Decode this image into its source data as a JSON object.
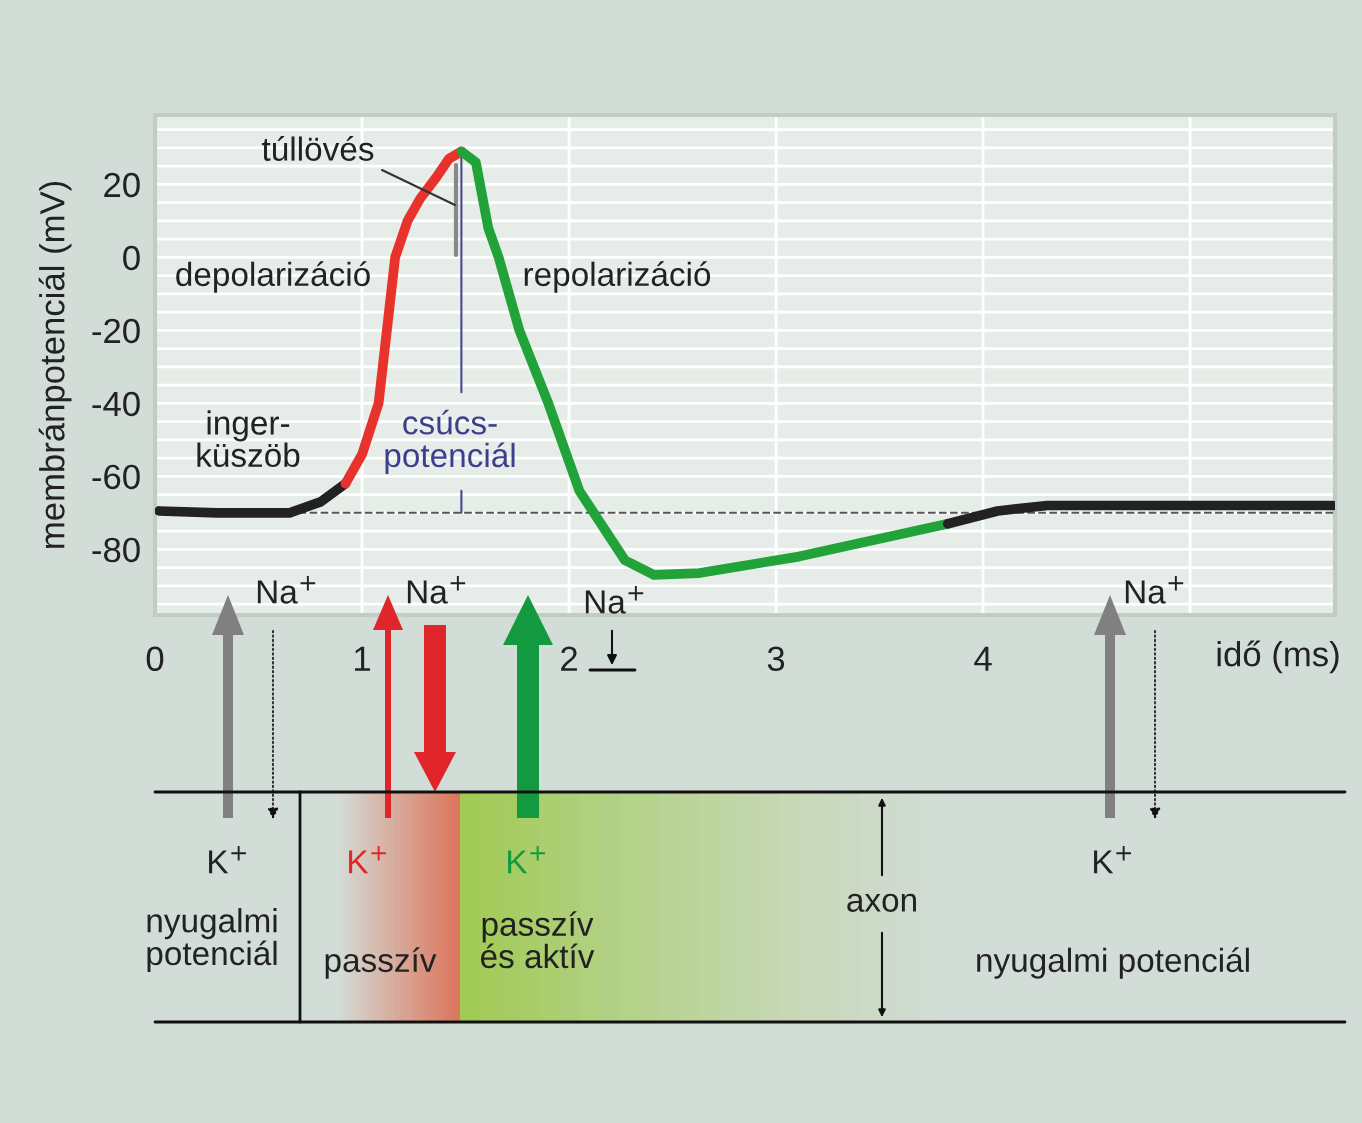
{
  "chart_data": {
    "type": "line",
    "xlabel": "idő (ms)",
    "ylabel": "membránpotenciál (mV)",
    "xlim": [
      0,
      5.7
    ],
    "ylim": [
      -98,
      39
    ],
    "xticks": [
      0,
      1,
      2,
      3,
      4,
      {
        "value": 5,
        "label": null
      }
    ],
    "yticks": [
      {
        "value": -95,
        "label": null
      },
      {
        "value": -90,
        "label": null
      },
      {
        "value": -85,
        "label": null
      },
      -80,
      {
        "value": -75,
        "label": null
      },
      {
        "value": -70,
        "label": null
      },
      {
        "value": -65,
        "label": null
      },
      -60,
      {
        "value": -55,
        "label": null
      },
      {
        "value": -50,
        "label": null
      },
      {
        "value": -45,
        "label": null
      },
      -40,
      {
        "value": -35,
        "label": null
      },
      {
        "value": -30,
        "label": null
      },
      {
        "value": -25,
        "label": null
      },
      -20,
      {
        "value": -15,
        "label": null
      },
      {
        "value": -10,
        "label": null
      },
      {
        "value": -5,
        "label": null
      },
      0,
      {
        "value": 5,
        "label": null
      },
      {
        "value": 10,
        "label": null
      },
      {
        "value": 15,
        "label": null
      },
      20,
      {
        "value": 25,
        "label": null
      },
      {
        "value": 30,
        "label": null
      },
      {
        "value": 35,
        "label": null
      }
    ],
    "grid": true,
    "line_style": "solid",
    "marker": "none",
    "series": [
      {
        "color": "#222222",
        "x": [
          0.02,
          0.3,
          0.65,
          0.8,
          0.92
        ],
        "values": [
          -69.5,
          -70,
          -70,
          -67,
          -62
        ]
      },
      {
        "color": "#e8322c",
        "x": [
          0.92,
          1.0,
          1.08,
          1.12,
          1.16,
          1.22,
          1.28,
          1.36,
          1.42,
          1.48
        ],
        "values": [
          -62,
          -54,
          -40,
          -20,
          0,
          10,
          16,
          22,
          27,
          29
        ]
      },
      {
        "color": "#22a33a",
        "x": [
          1.48,
          1.55,
          1.61,
          1.66,
          1.76,
          1.9,
          2.05,
          2.27,
          2.41,
          2.63,
          3.11,
          3.83
        ],
        "values": [
          29,
          26,
          8,
          0,
          -20,
          -40,
          -64,
          -83,
          -87,
          -86.5,
          -82,
          -73
        ]
      },
      {
        "color": "#222222",
        "x": [
          3.83,
          4.07,
          4.31,
          5.0,
          5.69
        ],
        "values": [
          -73,
          -69.5,
          -68,
          -68,
          -68
        ]
      }
    ],
    "ref_lines": [
      {
        "axis": "y",
        "value": -70,
        "color": "#555555",
        "line_style": "dashed"
      }
    ],
    "annotations": [
      "túllövés",
      "depolarizáció",
      "repolarizáció",
      "inger-\nküszöb",
      {
        "text": "csúcs-\npotenciál",
        "x": 1.48,
        "y": 29
      },
      "Na$^{+}$",
      "Na$^{+}$",
      "Na$^{+}$",
      "Na$^{+}$",
      "K$^{+}$",
      "K$^{+}$",
      "K$^{+}$",
      "K$^{+}$",
      "nyugalmi\npotenciál",
      "passzív",
      "passzív\nés aktív",
      "axon",
      "nyugalmi potenciál"
    ]
  }
}
